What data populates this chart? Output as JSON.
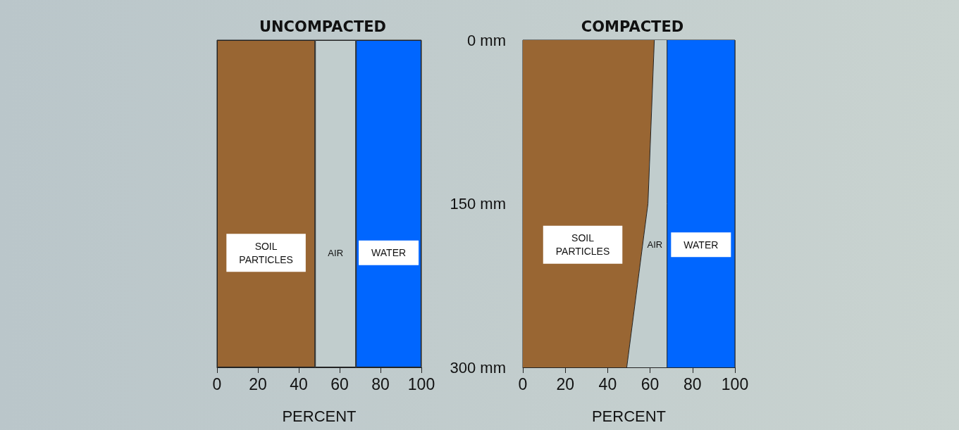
{
  "chart_data": [
    {
      "type": "bar",
      "title": "UNCOMPACTED",
      "xlabel": "PERCENT",
      "orientation": "horizontal",
      "stacked": true,
      "tick_labels": "x",
      "categories": [
        null
      ],
      "series": [
        {
          "name": "SOIL PARTICLES",
          "color": "#996633",
          "values": [
            48
          ]
        },
        {
          "name": "AIR",
          "color": "#c1cdcd",
          "values": [
            20
          ]
        },
        {
          "name": "WATER",
          "color": "#0066ff",
          "values": [
            32
          ]
        }
      ],
      "xlim": [
        0,
        100
      ],
      "xticks": [
        0,
        20,
        40,
        60,
        80,
        100
      ]
    },
    {
      "type": "area",
      "title": "COMPACTED",
      "xlabel": "PERCENT",
      "orientation": "horizontal",
      "stacked": true,
      "categories": [
        "0 mm",
        "150 mm",
        "300 mm"
      ],
      "series": [
        {
          "name": "SOIL PARTICLES",
          "color": "#996633",
          "values": [
            62,
            59,
            49
          ]
        },
        {
          "name": "AIR",
          "color": "#c1cdcd",
          "values": [
            6,
            9,
            19
          ]
        },
        {
          "name": "WATER",
          "color": "#0066ff",
          "values": [
            32,
            32,
            32
          ]
        }
      ],
      "xlim": [
        0,
        100
      ],
      "xticks": [
        0,
        20,
        40,
        60,
        80,
        100
      ]
    }
  ]
}
